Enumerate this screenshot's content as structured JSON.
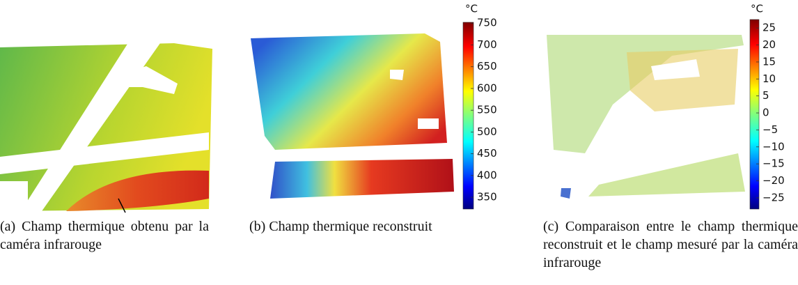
{
  "figure": {
    "panels": [
      {
        "caption": "(a) Champ thermique obtenu par la caméra infrarouge"
      },
      {
        "caption": "(b) Champ thermique reconstruit",
        "colorbar": {
          "unit": "°C",
          "range": [
            323,
            752
          ],
          "ticks": [
            350,
            400,
            450,
            500,
            550,
            600,
            650,
            700,
            750
          ]
        }
      },
      {
        "caption": "(c) Comparaison entre le champ thermique reconstruit et le champ mesuré par la caméra infrarouge",
        "colorbar": {
          "unit": "°C",
          "range": [
            -28.3,
            27.5
          ],
          "ticks": [
            {
              "value": -25,
              "label": "−25"
            },
            {
              "value": -20,
              "label": "−20"
            },
            {
              "value": -15,
              "label": "−15"
            },
            {
              "value": -10,
              "label": "−10"
            },
            {
              "value": -5,
              "label": "−5"
            },
            0,
            5,
            10,
            15,
            20,
            25
          ]
        }
      }
    ]
  }
}
